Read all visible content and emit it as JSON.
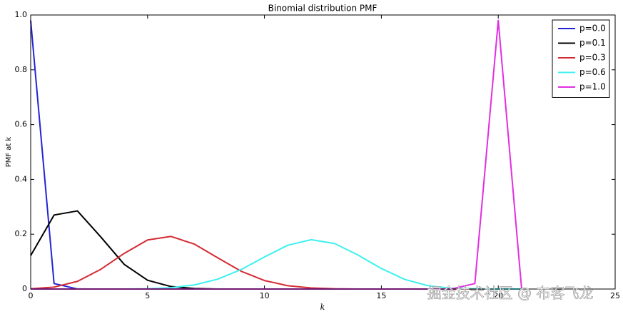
{
  "chart_data": {
    "type": "line",
    "title": "Binomial distribution PMF",
    "x_label": "k",
    "y_label": "PMF at k",
    "x": [
      0,
      1,
      2,
      3,
      4,
      5,
      6,
      7,
      8,
      9,
      10,
      11,
      12,
      13,
      14,
      15,
      16,
      17,
      18,
      19,
      20,
      21
    ],
    "series": [
      {
        "name": "p=0.0",
        "color": "#2323d6",
        "values": [
          0.98,
          0.02,
          0.0002,
          0,
          0,
          0,
          0,
          0,
          0,
          0,
          0,
          0,
          0,
          0,
          0,
          0,
          0,
          0,
          0,
          0,
          0,
          0
        ]
      },
      {
        "name": "p=0.1",
        "color": "#000000",
        "values": [
          0.122,
          0.27,
          0.285,
          0.19,
          0.09,
          0.032,
          0.009,
          0.002,
          0,
          0,
          0,
          0,
          0,
          0,
          0,
          0,
          0,
          0,
          0,
          0,
          0,
          0
        ]
      },
      {
        "name": "p=0.3",
        "color": "#d42a33",
        "values": [
          0.001,
          0.007,
          0.028,
          0.072,
          0.13,
          0.179,
          0.192,
          0.164,
          0.114,
          0.065,
          0.031,
          0.012,
          0.004,
          0.001,
          0,
          0,
          0,
          0,
          0,
          0,
          0,
          0
        ]
      },
      {
        "name": "p=0.6",
        "color": "#3ff0f0",
        "values": [
          0,
          0,
          0,
          0,
          0,
          0.001,
          0.005,
          0.015,
          0.036,
          0.071,
          0.117,
          0.16,
          0.18,
          0.166,
          0.124,
          0.075,
          0.035,
          0.012,
          0.003,
          0.001,
          0,
          0
        ]
      },
      {
        "name": "p=1.0",
        "color": "#e22ee2",
        "values": [
          0,
          0,
          0,
          0,
          0,
          0,
          0,
          0,
          0,
          0,
          0,
          0,
          0,
          0,
          0,
          0,
          0,
          0,
          0,
          0.02,
          0.98,
          0
        ]
      }
    ],
    "xlim": [
      0,
      25
    ],
    "xticks": [
      0,
      5,
      10,
      15,
      20,
      25
    ],
    "ylim": [
      0,
      1
    ],
    "yticks": [
      0,
      0.2,
      0.4,
      0.6,
      0.8,
      {
        "value": 1,
        "label": "1.0"
      }
    ],
    "legend": "upper right"
  },
  "watermark": "掘金技术社区 @ 布客飞龙"
}
